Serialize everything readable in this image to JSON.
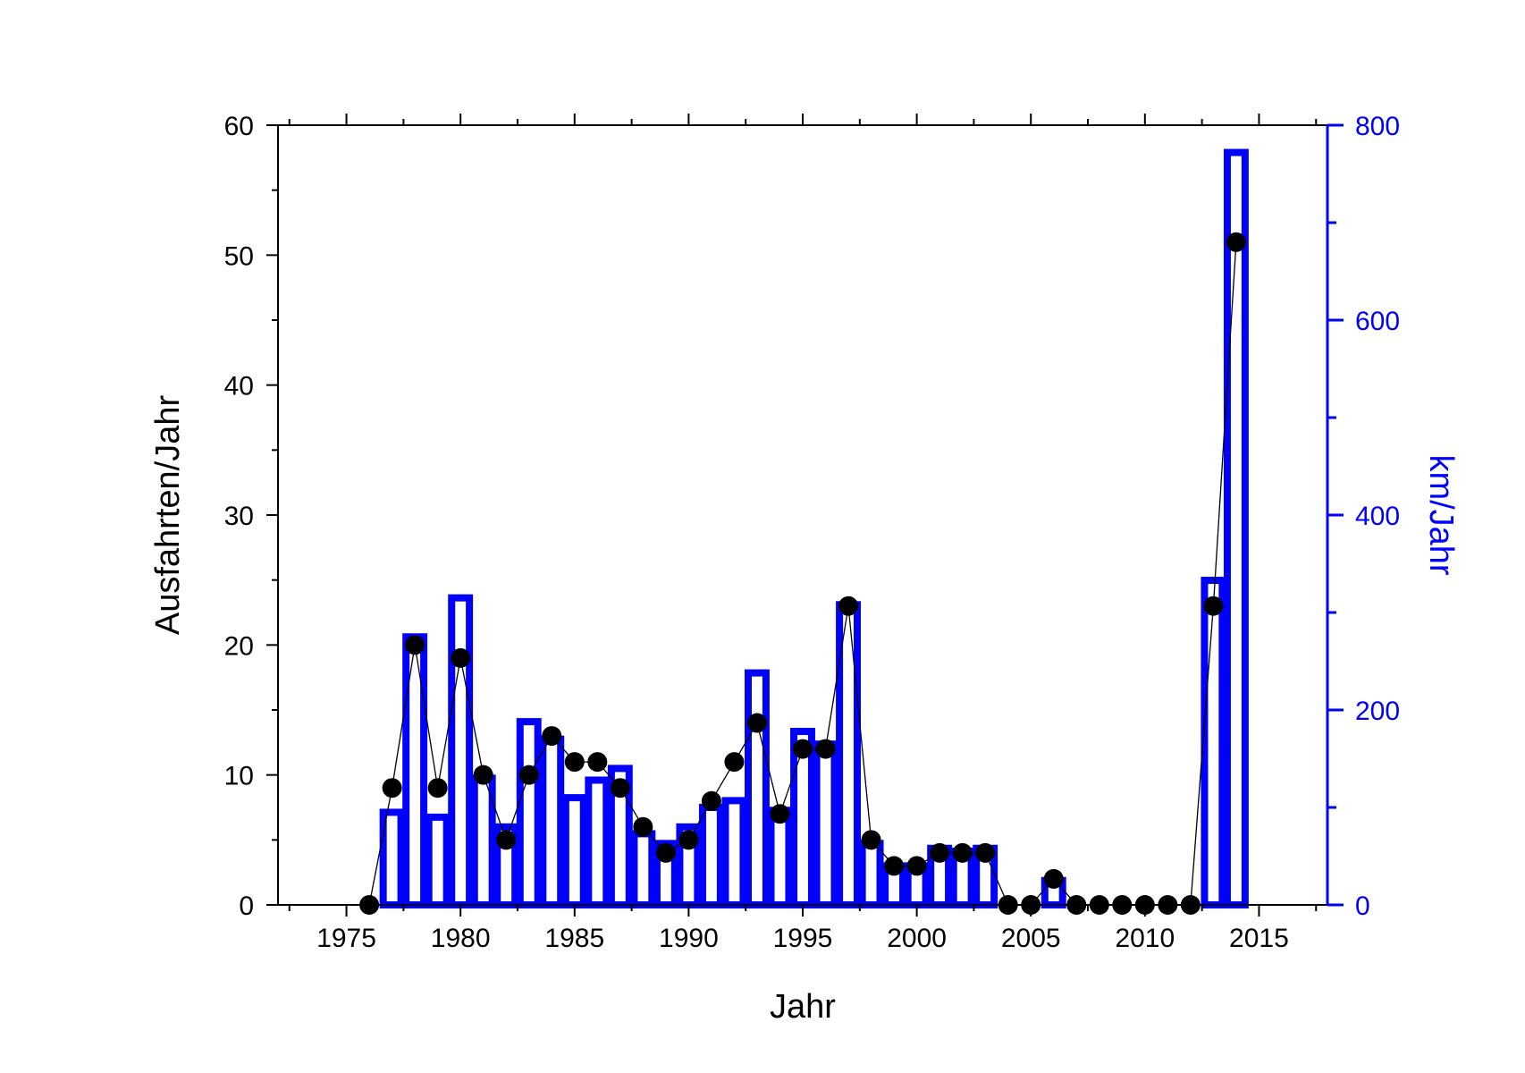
{
  "chart_data": {
    "type": "bar",
    "xlabel": "Jahr",
    "xlim": [
      1972,
      2018
    ],
    "x_ticks": [
      1975,
      1980,
      1985,
      1990,
      1995,
      2000,
      2005,
      2010,
      2015
    ],
    "y_left": {
      "label": "Ausfahrten/Jahr",
      "lim": [
        0,
        60
      ],
      "ticks": [
        0,
        10,
        20,
        30,
        40,
        50,
        60
      ],
      "color": "#000000"
    },
    "y_right": {
      "label": "km/Jahr",
      "lim": [
        0,
        800
      ],
      "ticks": [
        0,
        200,
        400,
        600,
        800
      ],
      "color": "#0000ff"
    },
    "series": [
      {
        "type": "bar",
        "axis": "right",
        "color": "#0000ff",
        "x": [
          1977,
          1978,
          1979,
          1980,
          1981,
          1982,
          1983,
          1984,
          1985,
          1986,
          1987,
          1988,
          1989,
          1990,
          1991,
          1992,
          1993,
          1994,
          1995,
          1996,
          1997,
          1998,
          1999,
          2000,
          2001,
          2002,
          2003,
          2006,
          2013,
          2014
        ],
        "values": [
          95,
          275,
          90,
          315,
          130,
          80,
          188,
          170,
          110,
          128,
          140,
          73,
          63,
          80,
          100,
          107,
          238,
          97,
          178,
          165,
          308,
          63,
          40,
          40,
          58,
          55,
          58,
          25,
          333,
          772
        ]
      },
      {
        "type": "line",
        "axis": "left",
        "color": "#000000",
        "marker": "circle",
        "x": [
          1976,
          1977,
          1978,
          1979,
          1980,
          1981,
          1982,
          1983,
          1984,
          1985,
          1986,
          1987,
          1988,
          1989,
          1990,
          1991,
          1992,
          1993,
          1994,
          1995,
          1996,
          1997,
          1998,
          1999,
          2000,
          2001,
          2002,
          2003,
          2004,
          2005,
          2006,
          2007,
          2008,
          2009,
          2010,
          2011,
          2012,
          2013,
          2014
        ],
        "values": [
          0,
          9,
          20,
          9,
          19,
          10,
          5,
          10,
          13,
          11,
          11,
          9,
          6,
          4,
          5,
          8,
          11,
          14,
          7,
          12,
          12,
          23,
          5,
          3,
          3,
          4,
          4,
          4,
          0,
          0,
          2,
          0,
          0,
          0,
          0,
          0,
          0,
          23,
          51
        ]
      }
    ]
  }
}
